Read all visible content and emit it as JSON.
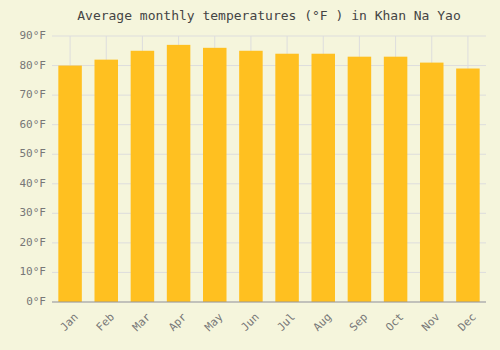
{
  "chart_data": {
    "type": "bar",
    "title": "Average monthly temperatures (°F ) in Khan Na Yao",
    "categories": [
      "Jan",
      "Feb",
      "Mar",
      "Apr",
      "May",
      "Jun",
      "Jul",
      "Aug",
      "Sep",
      "Oct",
      "Nov",
      "Dec"
    ],
    "values": [
      80,
      82,
      85,
      87,
      86,
      85,
      84,
      84,
      83,
      83,
      81,
      79
    ],
    "color": "#FFC020",
    "ylim": [
      0,
      90
    ],
    "yticks": [
      {
        "value": 0,
        "label": "0°F"
      },
      {
        "value": 10,
        "label": "10°F"
      },
      {
        "value": 20,
        "label": "20°F"
      },
      {
        "value": 30,
        "label": "30°F"
      },
      {
        "value": 40,
        "label": "40°F"
      },
      {
        "value": 50,
        "label": "50°F"
      },
      {
        "value": 60,
        "label": "60°F"
      },
      {
        "value": 70,
        "label": "70°F"
      },
      {
        "value": 80,
        "label": "80°F"
      },
      {
        "value": 90,
        "label": "90°F"
      }
    ],
    "grid": true
  }
}
